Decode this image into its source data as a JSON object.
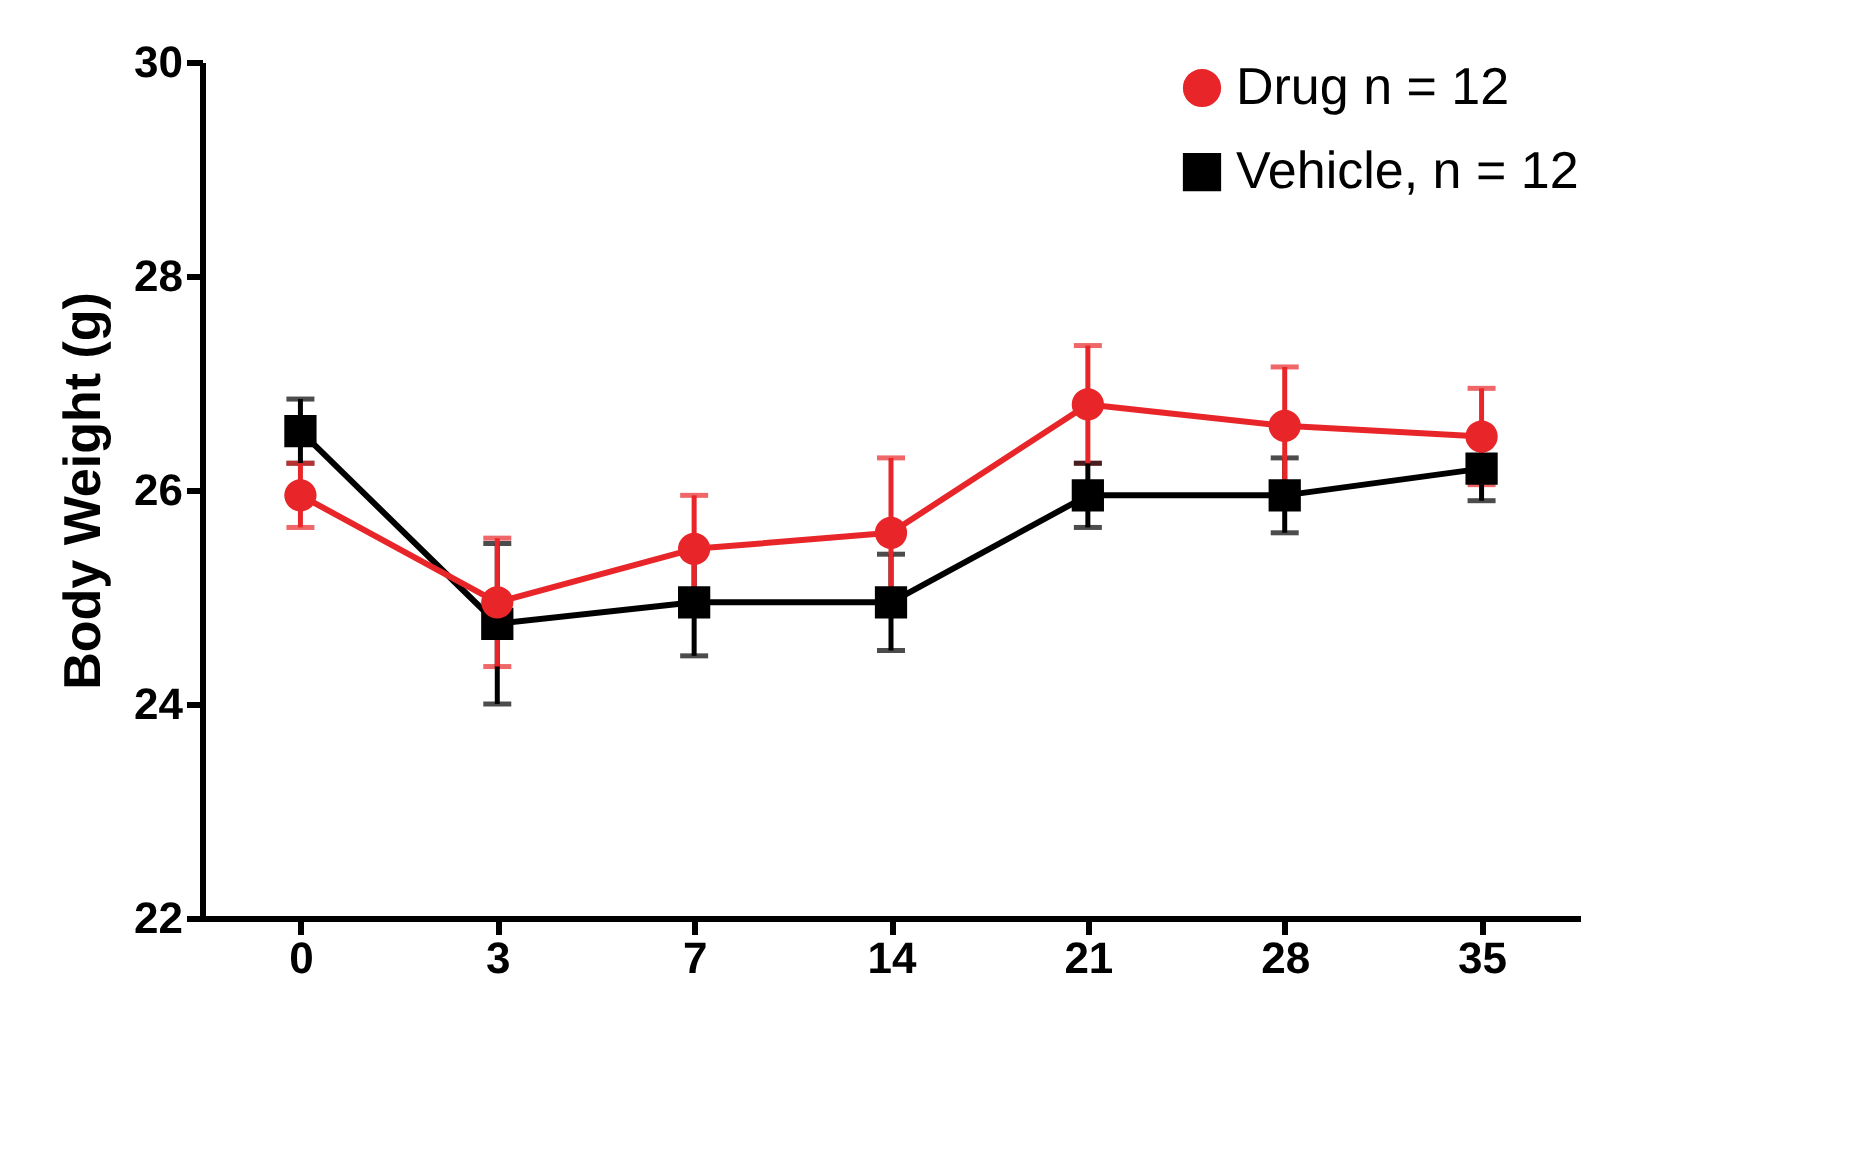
{
  "chart_data": {
    "type": "line",
    "ylabel": "Body Weight (g)",
    "categories": [
      "0",
      "3",
      "7",
      "14",
      "21",
      "28",
      "35"
    ],
    "ylim": [
      22,
      30
    ],
    "yticks": [
      22,
      24,
      26,
      28,
      30
    ],
    "grid": false,
    "legend": "top right",
    "line_style": "solid",
    "series": [
      {
        "name": "Vehicle, n = 12",
        "color": "#000000",
        "marker": "square",
        "values": [
          26.55,
          24.75,
          24.95,
          24.95,
          25.95,
          25.95,
          26.2
        ],
        "errors": [
          0.3,
          0.75,
          0.5,
          0.45,
          0.3,
          0.35,
          0.3
        ]
      },
      {
        "name": "Drug n = 12",
        "color": "#e8262a",
        "marker": "circle",
        "values": [
          25.95,
          24.95,
          25.45,
          25.6,
          26.8,
          26.6,
          26.5
        ],
        "errors": [
          0.3,
          0.6,
          0.5,
          0.7,
          0.55,
          0.55,
          0.45
        ]
      }
    ]
  }
}
